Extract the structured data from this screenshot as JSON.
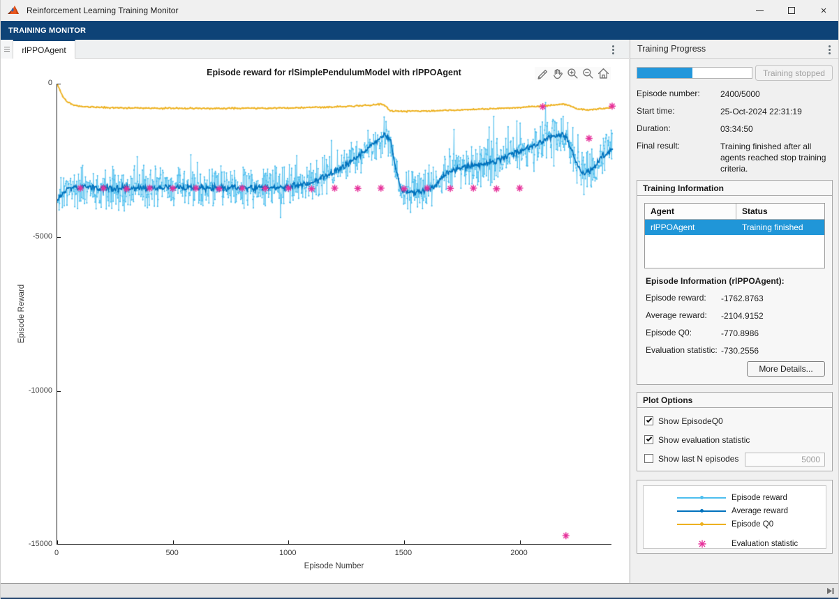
{
  "window": {
    "title": "Reinforcement Learning Training Monitor",
    "controls": [
      "minimize",
      "maximize",
      "close"
    ]
  },
  "ribbon": {
    "label": "TRAINING MONITOR"
  },
  "tabs": {
    "active": "rlPPOAgent"
  },
  "chart_toolbar": {
    "icons": [
      "brush",
      "pan",
      "zoom-in",
      "zoom-out",
      "home"
    ]
  },
  "chart_data": {
    "type": "line",
    "title": "Episode reward for rlSimplePendulumModel with rlPPOAgent",
    "xlabel": "Episode Number",
    "ylabel": "Episode Reward",
    "xlim": [
      0,
      2400
    ],
    "ylim": [
      -15000,
      0
    ],
    "xticks": [
      0,
      500,
      1000,
      1500,
      2000
    ],
    "yticks": [
      0,
      -5000,
      -10000,
      -15000
    ],
    "grid": false,
    "legend_position": "separate-panel",
    "series": [
      {
        "name": "Episode reward",
        "color": "#4DBEEE",
        "style": "line+marker",
        "noise": 780,
        "anchors": [
          [
            0,
            -3750
          ],
          [
            40,
            -3420
          ],
          [
            100,
            -3380
          ],
          [
            300,
            -3400
          ],
          [
            500,
            -3380
          ],
          [
            700,
            -3400
          ],
          [
            900,
            -3380
          ],
          [
            1000,
            -3350
          ],
          [
            1100,
            -3250
          ],
          [
            1150,
            -3050
          ],
          [
            1200,
            -2850
          ],
          [
            1260,
            -2600
          ],
          [
            1320,
            -2250
          ],
          [
            1380,
            -1900
          ],
          [
            1420,
            -1650
          ],
          [
            1445,
            -1900
          ],
          [
            1465,
            -2800
          ],
          [
            1485,
            -3400
          ],
          [
            1510,
            -3520
          ],
          [
            1560,
            -3500
          ],
          [
            1620,
            -3420
          ],
          [
            1650,
            -3200
          ],
          [
            1680,
            -2950
          ],
          [
            1710,
            -2800
          ],
          [
            1760,
            -2720
          ],
          [
            1820,
            -2650
          ],
          [
            1870,
            -2580
          ],
          [
            1910,
            -2480
          ],
          [
            1950,
            -2350
          ],
          [
            2000,
            -2200
          ],
          [
            2050,
            -2050
          ],
          [
            2100,
            -1880
          ],
          [
            2140,
            -1720
          ],
          [
            2170,
            -1650
          ],
          [
            2200,
            -1750
          ],
          [
            2230,
            -2250
          ],
          [
            2255,
            -2750
          ],
          [
            2275,
            -2950
          ],
          [
            2300,
            -2880
          ],
          [
            2330,
            -2650
          ],
          [
            2355,
            -2400
          ],
          [
            2380,
            -2200
          ],
          [
            2400,
            -2105
          ]
        ]
      },
      {
        "name": "Average reward",
        "color": "#0072BD",
        "style": "line+marker",
        "noise": 120,
        "anchors": [
          [
            0,
            -3750
          ],
          [
            40,
            -3420
          ],
          [
            100,
            -3380
          ],
          [
            300,
            -3400
          ],
          [
            500,
            -3380
          ],
          [
            700,
            -3400
          ],
          [
            900,
            -3380
          ],
          [
            1000,
            -3350
          ],
          [
            1100,
            -3250
          ],
          [
            1150,
            -3050
          ],
          [
            1200,
            -2850
          ],
          [
            1260,
            -2600
          ],
          [
            1320,
            -2250
          ],
          [
            1380,
            -1900
          ],
          [
            1420,
            -1650
          ],
          [
            1445,
            -1900
          ],
          [
            1465,
            -2800
          ],
          [
            1485,
            -3400
          ],
          [
            1510,
            -3520
          ],
          [
            1560,
            -3500
          ],
          [
            1620,
            -3420
          ],
          [
            1650,
            -3200
          ],
          [
            1680,
            -2950
          ],
          [
            1710,
            -2800
          ],
          [
            1760,
            -2720
          ],
          [
            1820,
            -2650
          ],
          [
            1870,
            -2580
          ],
          [
            1910,
            -2480
          ],
          [
            1950,
            -2350
          ],
          [
            2000,
            -2200
          ],
          [
            2050,
            -2050
          ],
          [
            2100,
            -1880
          ],
          [
            2140,
            -1720
          ],
          [
            2170,
            -1650
          ],
          [
            2200,
            -1750
          ],
          [
            2230,
            -2250
          ],
          [
            2255,
            -2750
          ],
          [
            2275,
            -2950
          ],
          [
            2300,
            -2880
          ],
          [
            2330,
            -2650
          ],
          [
            2355,
            -2400
          ],
          [
            2380,
            -2200
          ],
          [
            2400,
            -2105
          ]
        ],
        "final_value": -2104.9152
      },
      {
        "name": "Episode Q0",
        "color": "#EDB120",
        "style": "line+marker",
        "noise": 26,
        "anchors": [
          [
            0,
            0
          ],
          [
            12,
            -230
          ],
          [
            25,
            -430
          ],
          [
            45,
            -600
          ],
          [
            70,
            -690
          ],
          [
            110,
            -740
          ],
          [
            170,
            -770
          ],
          [
            300,
            -790
          ],
          [
            500,
            -800
          ],
          [
            700,
            -805
          ],
          [
            900,
            -800
          ],
          [
            1050,
            -785
          ],
          [
            1180,
            -760
          ],
          [
            1280,
            -730
          ],
          [
            1350,
            -700
          ],
          [
            1395,
            -665
          ],
          [
            1415,
            -680
          ],
          [
            1435,
            -860
          ],
          [
            1460,
            -895
          ],
          [
            1550,
            -895
          ],
          [
            1640,
            -880
          ],
          [
            1750,
            -850
          ],
          [
            1850,
            -820
          ],
          [
            1950,
            -790
          ],
          [
            2050,
            -750
          ],
          [
            2100,
            -735
          ],
          [
            2150,
            -700
          ],
          [
            2185,
            -665
          ],
          [
            2215,
            -700
          ],
          [
            2250,
            -820
          ],
          [
            2290,
            -855
          ],
          [
            2330,
            -830
          ],
          [
            2370,
            -800
          ],
          [
            2400,
            -771
          ]
        ],
        "final_value": -770.8986
      }
    ],
    "evaluation_statistic": {
      "name": "Evaluation statistic",
      "color": "#E6309A",
      "marker": "asterisk",
      "points": [
        [
          100,
          -3400
        ],
        [
          200,
          -3400
        ],
        [
          300,
          -3420
        ],
        [
          400,
          -3400
        ],
        [
          500,
          -3410
        ],
        [
          600,
          -3400
        ],
        [
          700,
          -3420
        ],
        [
          800,
          -3400
        ],
        [
          900,
          -3410
        ],
        [
          1000,
          -3400
        ],
        [
          1100,
          -3420
        ],
        [
          1200,
          -3400
        ],
        [
          1300,
          -3410
        ],
        [
          1400,
          -3400
        ],
        [
          1500,
          -3420
        ],
        [
          1600,
          -3400
        ],
        [
          1700,
          -3410
        ],
        [
          1800,
          -3400
        ],
        [
          1900,
          -3420
        ],
        [
          2000,
          -3400
        ],
        [
          2100,
          -750
        ],
        [
          2200,
          -14710
        ],
        [
          2300,
          -1780
        ],
        [
          2400,
          -730.2556
        ]
      ]
    }
  },
  "right_panel": {
    "title": "Training Progress",
    "progress": {
      "percent": 48,
      "button_label": "Training stopped"
    },
    "fields": [
      {
        "label": "Episode number:",
        "value": "2400/5000"
      },
      {
        "label": "Start time:",
        "value": "25-Oct-2024 22:31:19"
      },
      {
        "label": "Duration:",
        "value": "03:34:50"
      },
      {
        "label": "Final result:",
        "value": "Training finished after all agents reached stop training criteria."
      }
    ],
    "training_information": {
      "title": "Training Information",
      "table": {
        "columns": [
          "Agent",
          "Status"
        ],
        "rows": [
          {
            "agent": "rlPPOAgent",
            "status": "Training finished",
            "selected": true
          }
        ]
      },
      "episode_info_title": "Episode Information (rlPPOAgent):",
      "fields": [
        {
          "label": "Episode reward:",
          "value": "-1762.8763"
        },
        {
          "label": "Average reward:",
          "value": "-2104.9152"
        },
        {
          "label": "Episode Q0:",
          "value": "-770.8986"
        },
        {
          "label": "Evaluation statistic:",
          "value": "-730.2556"
        }
      ],
      "more_details_label": "More Details..."
    },
    "plot_options": {
      "title": "Plot Options",
      "checkboxes": [
        {
          "label": "Show EpisodeQ0",
          "checked": true
        },
        {
          "label": "Show evaluation statistic",
          "checked": true
        },
        {
          "label": "Show last N episodes",
          "checked": false
        }
      ],
      "last_n_value": "5000"
    },
    "legend": {
      "items": [
        {
          "label": "Episode reward",
          "color": "#4DBEEE",
          "type": "line"
        },
        {
          "label": "Average reward",
          "color": "#0072BD",
          "type": "line"
        },
        {
          "label": "Episode Q0",
          "color": "#EDB120",
          "type": "line"
        },
        {
          "label": "Evaluation statistic",
          "color": "#E6309A",
          "type": "asterisk"
        }
      ]
    }
  },
  "colors": {
    "ribbon": "#0e4377",
    "selection": "#2096d8",
    "progress_fill": "#2397db"
  }
}
